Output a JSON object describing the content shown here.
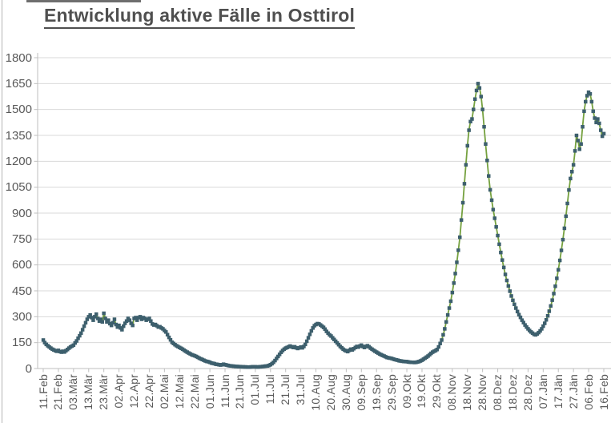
{
  "title": "Entwicklung aktive Fälle in Osttirol",
  "colors": {
    "line": "#75a13f",
    "marker": "#3d5f6d",
    "gridline": "#d9d9d9",
    "axis": "#bfbfbf",
    "label": "#595959",
    "title": "#4f4f4f"
  },
  "chart_data": {
    "type": "line",
    "title": "Entwicklung aktive Fälle in Osttirol",
    "xlabel": "",
    "ylabel": "",
    "ylim": [
      0,
      1800
    ],
    "grid": true,
    "legend": "none",
    "y_ticks": [
      0,
      150,
      300,
      450,
      600,
      750,
      900,
      1050,
      1200,
      1350,
      1500,
      1650,
      1800
    ],
    "x_tick_labels": [
      "11.Feb",
      "21.Feb",
      "03.Mär",
      "13.Mär",
      "23.Mär",
      "02.Apr",
      "12.Apr",
      "22.Apr",
      "02.Mai",
      "12.Mai",
      "22.Mai",
      "01.Jun",
      "11.Jun",
      "21.Jun",
      "01.Jul",
      "11.Jul",
      "21.Jul",
      "31.Jul",
      "10.Aug",
      "20.Aug",
      "30.Aug",
      "09.Sep",
      "19.Sep",
      "29.Sep",
      "09.Okt",
      "19.Okt",
      "29.Okt",
      "08.Nov",
      "18.Nov",
      "28.Nov",
      "08.Dez",
      "18.Dez",
      "28.Dez",
      "07.Jän",
      "17.Jän",
      "27.Jän",
      "06.Feb",
      "16.Feb"
    ],
    "x_tick_interval_days": 10,
    "series": [
      {
        "name": "aktive Fälle",
        "values": [
          165,
          150,
          140,
          132,
          125,
          118,
          112,
          108,
          103,
          100,
          105,
          98,
          95,
          100,
          96,
          103,
          110,
          118,
          125,
          130,
          135,
          148,
          160,
          175,
          190,
          205,
          225,
          245,
          265,
          285,
          300,
          310,
          295,
          280,
          300,
          315,
          290,
          275,
          285,
          270,
          320,
          290,
          270,
          280,
          260,
          250,
          265,
          285,
          255,
          240,
          250,
          235,
          225,
          245,
          262,
          275,
          290,
          280,
          262,
          250,
          290,
          295,
          280,
          295,
          300,
          285,
          295,
          290,
          280,
          285,
          290,
          275,
          258,
          252,
          255,
          248,
          240,
          242,
          235,
          230,
          220,
          212,
          196,
          180,
          166,
          152,
          145,
          138,
          132,
          127,
          122,
          117,
          112,
          106,
          100,
          95,
          90,
          85,
          80,
          77,
          74,
          70,
          65,
          60,
          56,
          52,
          48,
          44,
          41,
          39,
          36,
          32,
          30,
          28,
          25,
          24,
          22,
          20,
          22,
          25,
          22,
          20,
          18,
          16,
          15,
          14,
          13,
          12,
          12,
          11,
          11,
          10,
          10,
          9,
          9,
          8,
          8,
          9,
          10,
          10,
          10,
          9,
          9,
          10,
          11,
          12,
          13,
          14,
          15,
          18,
          22,
          28,
          36,
          46,
          58,
          70,
          82,
          94,
          104,
          112,
          118,
          122,
          126,
          130,
          126,
          122,
          126,
          120,
          116,
          120,
          124,
          120,
          128,
          140,
          158,
          178,
          198,
          218,
          235,
          248,
          255,
          260,
          258,
          252,
          245,
          238,
          228,
          215,
          205,
          195,
          188,
          178,
          168,
          158,
          148,
          138,
          128,
          120,
          112,
          106,
          102,
          98,
          105,
          112,
          108,
          115,
          122,
          128,
          124,
          130,
          135,
          128,
          122,
          128,
          132,
          126,
          118,
          112,
          106,
          100,
          95,
          90,
          84,
          80,
          76,
          72,
          68,
          64,
          62,
          60,
          58,
          55,
          52,
          50,
          48,
          45,
          44,
          42,
          41,
          40,
          40,
          38,
          37,
          36,
          36,
          35,
          36,
          38,
          40,
          44,
          48,
          54,
          60,
          66,
          72,
          80,
          88,
          95,
          100,
          104,
          110,
          125,
          145,
          165,
          195,
          230,
          270,
          310,
          350,
          390,
          440,
          495,
          550,
          615,
          685,
          760,
          860,
          960,
          1070,
          1180,
          1290,
          1380,
          1430,
          1445,
          1500,
          1560,
          1610,
          1650,
          1625,
          1575,
          1500,
          1400,
          1300,
          1205,
          1115,
          1035,
          975,
          920,
          870,
          820,
          770,
          720,
          672,
          628,
          585,
          545,
          510,
          478,
          448,
          420,
          395,
          372,
          350,
          330,
          312,
          296,
          280,
          266,
          252,
          240,
          230,
          220,
          212,
          205,
          198,
          195,
          200,
          208,
          218,
          230,
          245,
          262,
          282,
          305,
          332,
          362,
          396,
          434,
          476,
          522,
          572,
          626,
          684,
          746,
          812,
          882,
          956,
          1034,
          1100,
          1140,
          1180,
          1260,
          1350,
          1320,
          1270,
          1300,
          1400,
          1490,
          1545,
          1580,
          1600,
          1590,
          1545,
          1490,
          1450,
          1425,
          1445,
          1420,
          1380,
          1345,
          1360
        ]
      }
    ]
  }
}
